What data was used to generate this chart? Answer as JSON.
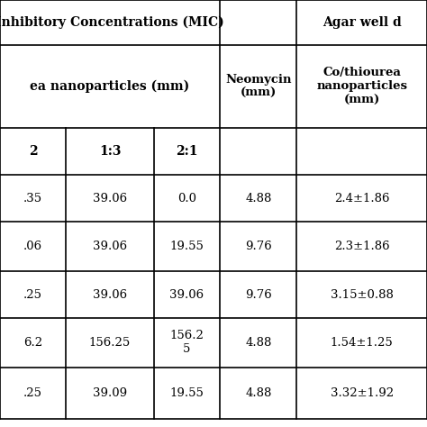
{
  "title_left": "Inhibitory Concentrations (MIC)",
  "title_right": "Agar well d",
  "col_header_nano": "ea nanoparticles (mm)",
  "col_header_neo": "Neomycin\n(mm)",
  "col_header_co": "Co/thiourea\nnanoparticles\n(mm)",
  "sub_headers": [
    "2",
    "1:3",
    "2:1"
  ],
  "rows": [
    [
      ".35",
      "39.06",
      "0.0",
      "4.88",
      "2.4±1.86"
    ],
    [
      ".06",
      "39.06",
      "19.55",
      "9.76",
      "2.3±1.86"
    ],
    [
      ".25",
      "39.06",
      "39.06",
      "9.76",
      "3.15±0.88"
    ],
    [
      "6.2",
      "156.25",
      "156.2\n5",
      "4.88",
      "1.54±1.25"
    ],
    [
      ".25",
      "39.09",
      "19.55",
      "4.88",
      "3.32±1.92"
    ]
  ],
  "bg_color": "#ffffff",
  "text_color": "#000000",
  "line_color": "#000000",
  "figsize": [
    4.74,
    4.74
  ],
  "dpi": 100
}
